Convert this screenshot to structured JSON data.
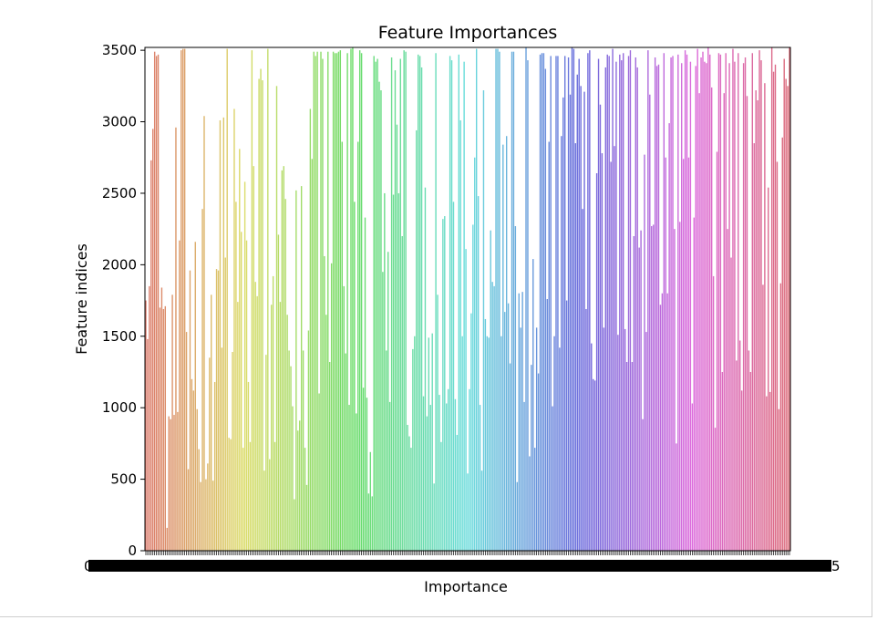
{
  "chart_data": {
    "type": "bar",
    "title": "Feature Importances",
    "xlabel": "Importance",
    "ylabel": "Feature indices",
    "ylim": [
      0,
      3520
    ],
    "yticks": [
      0,
      500,
      1000,
      1500,
      2000,
      2500,
      3000,
      3500
    ],
    "x_tick_label_first": "0",
    "x_tick_label_last": "5",
    "grid": false,
    "legend": "none",
    "palette": "husl",
    "values": [
      1750,
      1480,
      1850,
      2730,
      2950,
      3490,
      3460,
      3470,
      1700,
      1840,
      1690,
      1710,
      160,
      940,
      920,
      1790,
      950,
      2960,
      970,
      2170,
      3500,
      3510,
      3510,
      1530,
      570,
      1960,
      1200,
      1120,
      2160,
      990,
      710,
      480,
      2390,
      3040,
      500,
      610,
      1350,
      1790,
      490,
      1180,
      1970,
      1960,
      3010,
      1420,
      3030,
      2050,
      3510,
      790,
      780,
      1390,
      3090,
      2440,
      1740,
      2810,
      2230,
      720,
      2580,
      2170,
      1180,
      760,
      3500,
      2690,
      1880,
      1780,
      3300,
      3370,
      3290,
      560,
      1370,
      3510,
      640,
      1720,
      1920,
      760,
      3250,
      2210,
      1740,
      2660,
      2690,
      2460,
      1650,
      1400,
      1290,
      1010,
      360,
      2520,
      840,
      910,
      2550,
      1400,
      720,
      460,
      1540,
      3090,
      2740,
      3490,
      3460,
      3490,
      1100,
      3490,
      3440,
      2060,
      1650,
      3490,
      1320,
      2010,
      3490,
      3480,
      3480,
      3490,
      3500,
      2860,
      1850,
      1380,
      3480,
      1020,
      3510,
      3520,
      2440,
      960,
      2860,
      3500,
      3480,
      1140,
      2330,
      1070,
      400,
      690,
      380,
      3460,
      3420,
      3440,
      3280,
      3220,
      1950,
      2500,
      1400,
      2090,
      1040,
      3450,
      2490,
      3360,
      2980,
      2500,
      3440,
      2200,
      3500,
      3490,
      880,
      800,
      720,
      1410,
      1500,
      2940,
      3470,
      3460,
      3380,
      1080,
      2540,
      940,
      1490,
      1020,
      1520,
      470,
      3480,
      1790,
      1090,
      760,
      2320,
      2340,
      1030,
      1130,
      3460,
      3430,
      2440,
      1060,
      810,
      3470,
      3010,
      1500,
      3420,
      2110,
      540,
      1130,
      1660,
      2280,
      2750,
      3510,
      2480,
      1020,
      560,
      3220,
      1620,
      1500,
      1490,
      2240,
      1880,
      1850,
      3510,
      3510,
      3490,
      1500,
      2840,
      1670,
      2900,
      1730,
      1310,
      3490,
      3490,
      2270,
      480,
      1800,
      1560,
      1810,
      1040,
      3520,
      3430,
      660,
      1300,
      2040,
      720,
      1560,
      1240,
      3470,
      3480,
      3480,
      3370,
      1760,
      2860,
      3460,
      1010,
      1500,
      3460,
      3460,
      1420,
      2900,
      3170,
      3460,
      1750,
      3450,
      3190,
      3520,
      3510,
      2850,
      3330,
      3440,
      3250,
      2390,
      3210,
      1690,
      3480,
      3500,
      1450,
      1200,
      1190,
      2640,
      3440,
      3120,
      2780,
      1560,
      3380,
      3470,
      3460,
      2720,
      3510,
      2830,
      3420,
      1510,
      3470,
      3430,
      3480,
      1550,
      1320,
      3460,
      3500,
      1320,
      2200,
      3450,
      3380,
      2120,
      2240,
      920,
      2770,
      1530,
      3500,
      3190,
      2270,
      2280,
      3450,
      3390,
      3400,
      1720,
      1800,
      3480,
      2750,
      1800,
      2990,
      3450,
      3460,
      2250,
      750,
      3470,
      2300,
      3410,
      2740,
      3500,
      3470,
      2750,
      3420,
      1030,
      2330,
      3390,
      3510,
      3200,
      3450,
      3490,
      3420,
      3410,
      3520,
      3470,
      3240,
      1920,
      860,
      2790,
      3480,
      3470,
      1250,
      3200,
      3480,
      2250,
      3410,
      2050,
      3510,
      3420,
      1330,
      3480,
      1470,
      1120,
      3410,
      3450,
      3180,
      1400,
      1250,
      3480,
      2850,
      3220,
      3150,
      3500,
      3430,
      1860,
      3270,
      1080,
      2540,
      1110,
      3520,
      3350,
      3400,
      2720,
      990,
      1870,
      2890,
      3440,
      3300,
      3250,
      3520
    ]
  }
}
